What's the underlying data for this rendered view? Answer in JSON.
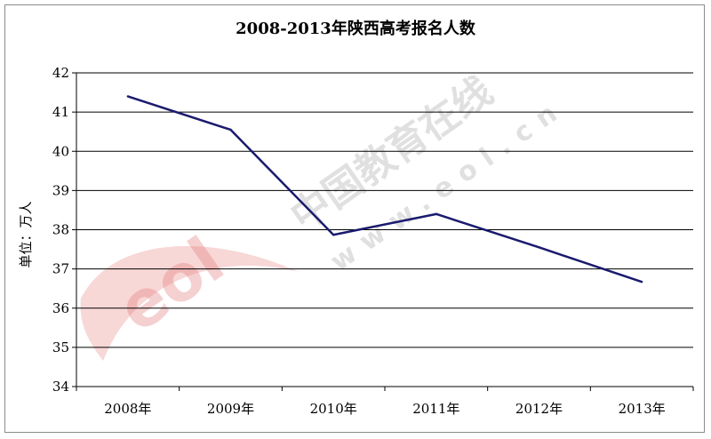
{
  "chart_data": {
    "type": "line",
    "title": "2008-2013年陕西高考报名人数",
    "ylabel": "单位：万人",
    "xlabel": "",
    "categories": [
      "2008年",
      "2009年",
      "2010年",
      "2011年",
      "2012年",
      "2013年"
    ],
    "series": [
      {
        "values": [
          41.4,
          40.55,
          37.87,
          38.4,
          37.55,
          36.67
        ]
      }
    ],
    "ylim": [
      34,
      42
    ],
    "yticks": [
      "34",
      "35",
      "36",
      "37",
      "38",
      "39",
      "40",
      "41",
      "42"
    ],
    "grid": true,
    "legend": "none",
    "line_color": "#1a1a6e"
  },
  "watermark": {
    "brand": "中国教育在线",
    "url": "www.eol.cn",
    "logo": "eol"
  }
}
